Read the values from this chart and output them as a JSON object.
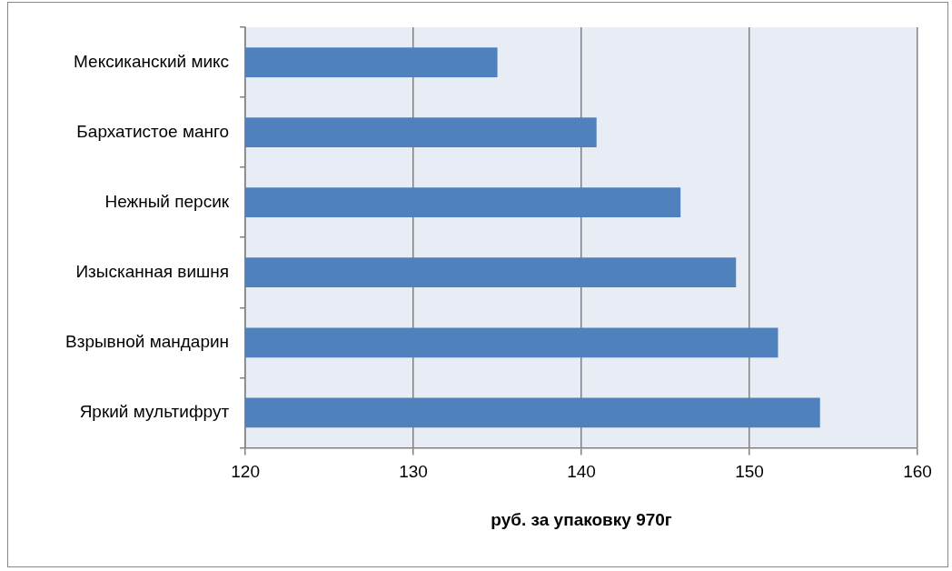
{
  "chart_data": {
    "type": "bar",
    "orientation": "horizontal",
    "xlabel": "руб. за упаковку 970г",
    "categories": [
      "Мексиканский микс",
      "Бархатистое манго",
      "Нежный персик",
      "Изысканная вишня",
      "Взрывной мандарин",
      "Яркий мультифрут"
    ],
    "values": [
      135,
      140.9,
      145.9,
      149.2,
      151.7,
      154.2
    ],
    "color": "#4f81bd",
    "xlim": [
      120,
      160
    ],
    "xticks": [
      120,
      130,
      140,
      150,
      160
    ],
    "grid": "x"
  }
}
